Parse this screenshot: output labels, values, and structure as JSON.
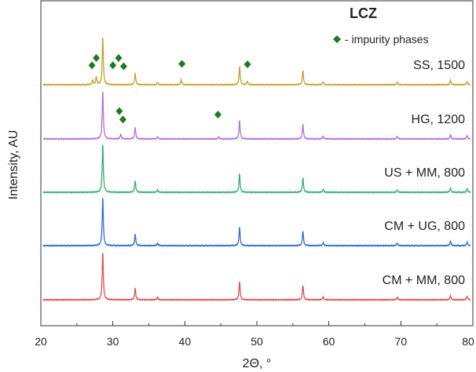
{
  "chart_data": {
    "type": "line",
    "title": "LCZ",
    "legend_text": "- impurity phases",
    "legend_marker_color": "#1e7a1e",
    "xlabel": "2Θ, °",
    "ylabel": "Intensity, AU",
    "xlim": [
      20,
      80
    ],
    "x_ticks": [
      20,
      30,
      40,
      50,
      60,
      70,
      80
    ],
    "y_ticks_shown": false,
    "main_peaks": [
      {
        "x": 28.6,
        "h": 1.0
      },
      {
        "x": 33.1,
        "h": 0.24
      },
      {
        "x": 36.2,
        "h": 0.05
      },
      {
        "x": 47.6,
        "h": 0.38
      },
      {
        "x": 56.4,
        "h": 0.3
      },
      {
        "x": 59.2,
        "h": 0.06
      },
      {
        "x": 69.5,
        "h": 0.05
      },
      {
        "x": 76.9,
        "h": 0.09
      },
      {
        "x": 79.2,
        "h": 0.07
      }
    ],
    "series": [
      {
        "name": "SS, 1500",
        "color": "#c9a12a",
        "impurity_peaks": [
          {
            "x": 27.2,
            "h": 0.1
          },
          {
            "x": 27.7,
            "h": 0.16
          },
          {
            "x": 39.5,
            "h": 0.1
          },
          {
            "x": 48.7,
            "h": 0.07
          }
        ],
        "impurity_markers": [
          {
            "x": 27.1,
            "y": 0.4
          },
          {
            "x": 27.7,
            "y": 0.55
          },
          {
            "x": 30.0,
            "y": 0.4
          },
          {
            "x": 30.8,
            "y": 0.55
          },
          {
            "x": 31.5,
            "y": 0.38
          },
          {
            "x": 39.6,
            "y": 0.43
          },
          {
            "x": 48.7,
            "y": 0.42
          }
        ]
      },
      {
        "name": "HG, 1200",
        "color": "#b56fd6",
        "impurity_peaks": [
          {
            "x": 31.1,
            "h": 0.1
          },
          {
            "x": 44.7,
            "h": 0.04
          }
        ],
        "impurity_markers": [
          {
            "x": 30.9,
            "y": 0.57
          },
          {
            "x": 31.4,
            "y": 0.4
          },
          {
            "x": 44.6,
            "y": 0.5
          }
        ]
      },
      {
        "name": "US + MM, 800",
        "color": "#2fb36b",
        "impurity_peaks": [],
        "impurity_markers": []
      },
      {
        "name": "CM + UG, 800",
        "color": "#2a6fd6",
        "impurity_peaks": [],
        "impurity_markers": []
      },
      {
        "name": "CM + MM, 800",
        "color": "#e05050",
        "impurity_peaks": [],
        "impurity_markers": []
      }
    ]
  }
}
